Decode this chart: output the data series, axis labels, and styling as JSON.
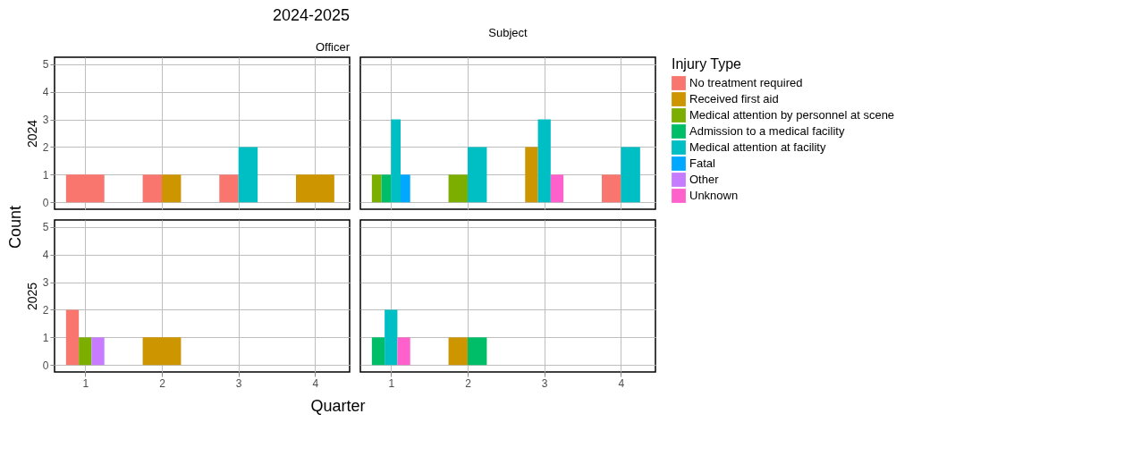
{
  "chart_data": [
    {
      "type": "bar",
      "title": "2024-2025",
      "subtitle": "Officer",
      "ylabel": "Count",
      "annotations": [
        "2024"
      ],
      "x": [
        1,
        2,
        3,
        4
      ],
      "xlim": [
        0.6,
        4.45
      ],
      "xticks": [
        1,
        2,
        3,
        4
      ],
      "ylim": [
        -0.25,
        5.25
      ],
      "yticks": [
        0,
        1,
        2,
        3,
        4,
        5
      ],
      "grid": true,
      "tick_labels": "y",
      "legend": false,
      "series": [
        {
          "color": "#f8766d",
          "values": [
            1,
            1,
            1,
            null
          ]
        },
        {
          "color": "#cd9600",
          "values": [
            null,
            1,
            null,
            1
          ]
        },
        {
          "color": "#00bfc4",
          "values": [
            null,
            null,
            2,
            null
          ]
        }
      ]
    },
    {
      "type": "bar",
      "subtitle": "Subject",
      "legend_title": "Injury Type",
      "legend": "right",
      "x": [
        1,
        2,
        3,
        4
      ],
      "xlim": [
        0.6,
        4.45
      ],
      "xticks": [
        1,
        2,
        3,
        4
      ],
      "ylim": [
        -0.25,
        5.25
      ],
      "yticks": [
        0,
        1,
        2,
        3,
        4,
        5
      ],
      "grid": true,
      "tick_labels": false,
      "series": [
        {
          "name": "No treatment required",
          "color": "#f8766d",
          "values": [
            null,
            null,
            null,
            1
          ]
        },
        {
          "name": "Received first aid",
          "color": "#cd9600",
          "values": [
            null,
            null,
            2,
            null
          ]
        },
        {
          "name": "Medical attention by personnel at scene",
          "color": "#7cae00",
          "values": [
            1,
            1,
            null,
            null
          ]
        },
        {
          "name": "Admission to a medical facility",
          "color": "#00be67",
          "values": [
            1,
            null,
            null,
            null
          ]
        },
        {
          "name": "Medical attention at facility",
          "color": "#00bfc4",
          "values": [
            3,
            2,
            3,
            2
          ]
        },
        {
          "name": "Fatal",
          "color": "#00a9ff",
          "values": [
            1,
            null,
            null,
            null
          ]
        },
        {
          "name": "Other",
          "color": "#c77cff",
          "values": [
            null,
            null,
            null,
            null
          ]
        },
        {
          "name": "Unknown",
          "color": "#ff61cc",
          "values": [
            null,
            null,
            1,
            null
          ]
        }
      ]
    },
    {
      "type": "bar",
      "xlabel": "Quarter",
      "annotations": [
        "2025"
      ],
      "x": [
        1,
        2
      ],
      "xlim": [
        0.6,
        4.45
      ],
      "xticks": [
        1,
        2,
        3,
        4
      ],
      "ylim": [
        -0.25,
        5.25
      ],
      "yticks": [
        0,
        1,
        2,
        3,
        4,
        5
      ],
      "grid": true,
      "legend": false,
      "series": [
        {
          "color": "#f8766d",
          "values": [
            2,
            null
          ]
        },
        {
          "color": "#cd9600",
          "values": [
            null,
            1
          ]
        },
        {
          "color": "#7cae00",
          "values": [
            1,
            null
          ]
        },
        {
          "color": "#c77cff",
          "values": [
            1,
            null
          ]
        }
      ]
    },
    {
      "type": "bar",
      "x": [
        1,
        2
      ],
      "xlim": [
        0.6,
        4.45
      ],
      "xticks": [
        1,
        2,
        3,
        4
      ],
      "ylim": [
        -0.25,
        5.25
      ],
      "yticks": [
        0,
        1,
        2,
        3,
        4,
        5
      ],
      "grid": true,
      "tick_labels": "x",
      "legend": false,
      "series": [
        {
          "color": "#cd9600",
          "values": [
            null,
            1
          ]
        },
        {
          "color": "#00be67",
          "values": [
            1,
            1
          ]
        },
        {
          "color": "#00bfc4",
          "values": [
            2,
            null
          ]
        },
        {
          "color": "#ff61cc",
          "values": [
            1,
            null
          ]
        }
      ]
    }
  ]
}
